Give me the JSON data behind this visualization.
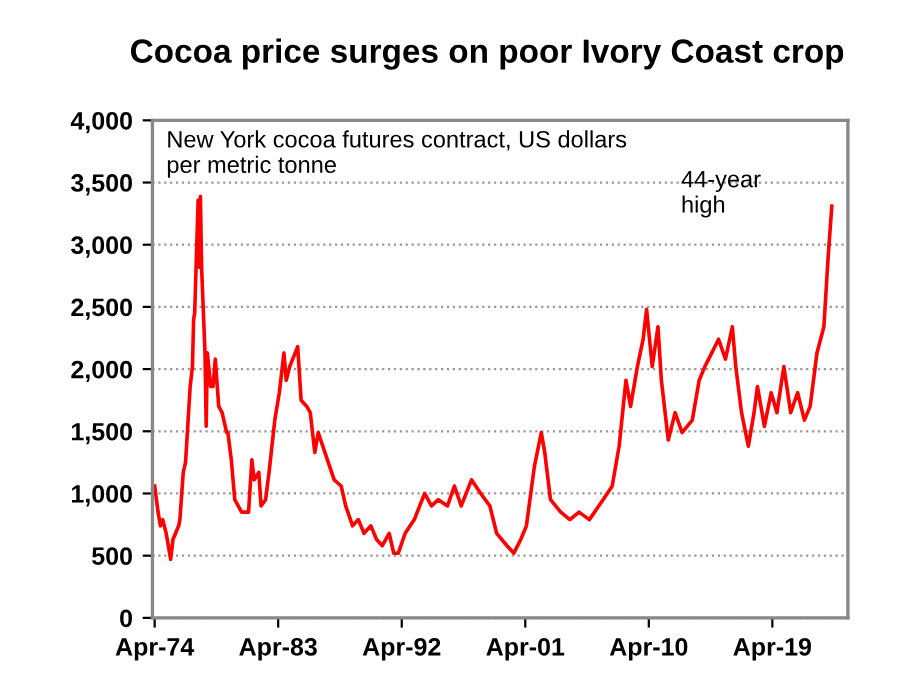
{
  "chart_data": {
    "type": "line",
    "title": "Cocoa price surges on poor Ivory Coast crop",
    "x": [
      "1974-04",
      "1974-07",
      "1974-09",
      "1974-11",
      "1975-02",
      "1975-06",
      "1975-08",
      "1976-01",
      "1976-02",
      "1976-05",
      "1976-07",
      "1976-11",
      "1977-01",
      "1977-02",
      "1977-03",
      "1977-06",
      "1977-07",
      "1977-08",
      "1977-09",
      "1977-12",
      "1978-01",
      "1978-02",
      "1978-05",
      "1978-07",
      "1978-09",
      "1978-12",
      "1979-03",
      "1979-07",
      "1979-08",
      "1979-11",
      "1980-02",
      "1980-08",
      "1981-02",
      "1981-05",
      "1981-07",
      "1981-11",
      "1982-01",
      "1982-05",
      "1982-08",
      "1983-01",
      "1983-05",
      "1983-09",
      "1983-11",
      "1984-02",
      "1984-09",
      "1984-12",
      "1985-05",
      "1985-08",
      "1985-12",
      "1986-03",
      "1986-11",
      "1987-05",
      "1987-11",
      "1988-03",
      "1988-09",
      "1989-02",
      "1989-07",
      "1990-01",
      "1990-06",
      "1990-11",
      "1991-05",
      "1991-09",
      "1992-01",
      "1992-07",
      "1993-03",
      "1993-12",
      "1994-06",
      "1994-12",
      "1995-08",
      "1996-02",
      "1996-08",
      "1997-05",
      "1998-01",
      "1998-09",
      "1999-03",
      "1999-12",
      "2000-06",
      "2000-12",
      "2001-05",
      "2001-12",
      "2002-06",
      "2002-09",
      "2003-02",
      "2003-11",
      "2004-07",
      "2005-03",
      "2005-12",
      "2006-12",
      "2007-08",
      "2008-02",
      "2008-08",
      "2008-12",
      "2009-06",
      "2009-11",
      "2010-02",
      "2010-07",
      "2010-12",
      "2011-03",
      "2011-09",
      "2012-03",
      "2012-09",
      "2013-06",
      "2013-12",
      "2014-05",
      "2014-11",
      "2015-05",
      "2015-11",
      "2016-05",
      "2016-08",
      "2017-01",
      "2017-07",
      "2017-12",
      "2018-03",
      "2018-09",
      "2019-03",
      "2019-08",
      "2020-02",
      "2020-08",
      "2021-02",
      "2021-08",
      "2022-01",
      "2022-07",
      "2023-01",
      "2023-05",
      "2023-08"
    ],
    "values": [
      1060,
      850,
      740,
      790,
      680,
      470,
      630,
      740,
      790,
      1170,
      1250,
      1860,
      2020,
      2400,
      2450,
      3360,
      2820,
      3390,
      2820,
      2130,
      1540,
      2130,
      1860,
      1860,
      2080,
      1700,
      1650,
      1490,
      1490,
      1270,
      950,
      850,
      850,
      1270,
      1110,
      1170,
      900,
      950,
      1170,
      1590,
      1810,
      2130,
      1910,
      2020,
      2180,
      1750,
      1700,
      1650,
      1330,
      1490,
      1270,
      1110,
      1060,
      900,
      740,
      790,
      680,
      740,
      630,
      580,
      680,
      520,
      520,
      680,
      790,
      1000,
      900,
      950,
      900,
      1060,
      900,
      1110,
      1000,
      900,
      680,
      580,
      520,
      630,
      740,
      1220,
      1490,
      1330,
      950,
      850,
      790,
      850,
      790,
      950,
      1060,
      1380,
      1910,
      1700,
      2020,
      2240,
      2480,
      2020,
      2340,
      1910,
      1430,
      1650,
      1490,
      1590,
      1910,
      2020,
      2130,
      2240,
      2080,
      2340,
      2020,
      1650,
      1380,
      1650,
      1860,
      1540,
      1810,
      1650,
      2020,
      1650,
      1810,
      1590,
      1700,
      2130,
      2340,
      2930,
      3310
    ],
    "color": "#ff0000",
    "xlim": [
      "1974-02",
      "2024-10"
    ],
    "xticks": [
      {
        "value": "1974-04",
        "label": "Apr-74"
      },
      {
        "value": "1983-04",
        "label": "Apr-83"
      },
      {
        "value": "1992-04",
        "label": "Apr-92"
      },
      {
        "value": "2001-04",
        "label": "Apr-01"
      },
      {
        "value": "2010-04",
        "label": "Apr-10"
      },
      {
        "value": "2019-04",
        "label": "Apr-19"
      }
    ],
    "ylim": [
      0,
      4000
    ],
    "yticks": [
      0,
      500,
      {
        "value": 1000,
        "label": "1,000"
      },
      {
        "value": 1500,
        "label": "1,500"
      },
      {
        "value": 2000,
        "label": "2,000"
      },
      {
        "value": 2500,
        "label": "2,500"
      },
      {
        "value": 3000,
        "label": "3,000"
      },
      {
        "value": 3500,
        "label": "3,500"
      },
      {
        "value": 4000,
        "label": "4,000"
      }
    ],
    "grid": "y",
    "line_style": "solid",
    "annotations": [
      "New York cocoa futures contract, US dollars\nper metric tonne",
      "44-year\nhigh"
    ]
  }
}
